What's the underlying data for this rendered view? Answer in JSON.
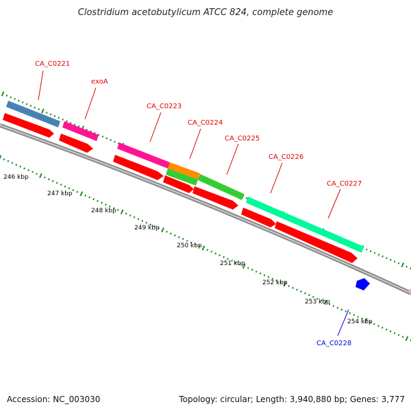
{
  "title": "Clostridium acetobutylicum ATCC 824, complete genome",
  "footer": {
    "accession": "Accession: NC_003030",
    "summary": "Topology: circular; Length: 3,940,880 bp; Genes: 3,777"
  },
  "colors": {
    "backbone": "#8c8c8c",
    "tick": "#1f8a1f",
    "label_red": "#e00000",
    "label_blue": "#0000e0",
    "cds_red": "#ff0000",
    "steelblue": "#4682b4",
    "magenta": "#ff1493",
    "orange": "#ff8c00",
    "green": "#32cd32",
    "springgreen": "#00fa9a",
    "blue": "#0000ff"
  },
  "ruler": [
    "246 kbp",
    "247 kbp",
    "248 kbp",
    "249 kbp",
    "250 kbp",
    "251 kbp",
    "252 kbp",
    "253 kbp",
    "254 kbp"
  ],
  "genes": [
    {
      "label": "CA_C0221",
      "color": "#e00000"
    },
    {
      "label": "exoA",
      "color": "#e00000"
    },
    {
      "label": "CA_C0223",
      "color": "#e00000"
    },
    {
      "label": "CA_C0224",
      "color": "#e00000"
    },
    {
      "label": "CA_C0225",
      "color": "#e00000"
    },
    {
      "label": "CA_C0226",
      "color": "#e00000"
    },
    {
      "label": "CA_C0227",
      "color": "#e00000"
    },
    {
      "label": "CA_C0228",
      "color": "#0000e0"
    }
  ]
}
